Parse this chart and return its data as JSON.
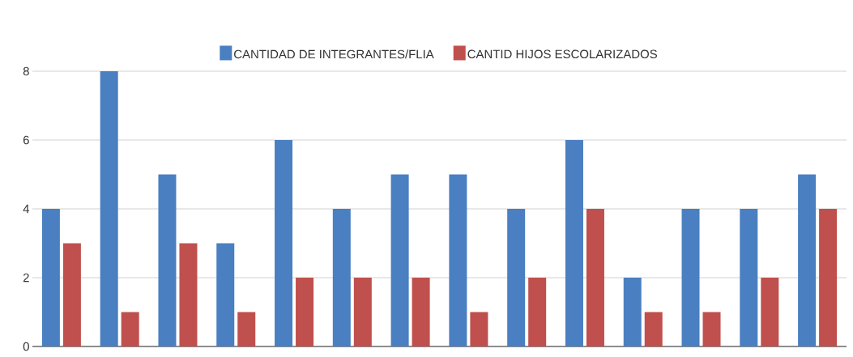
{
  "chart_data": {
    "type": "bar",
    "categories": [
      null,
      null,
      null,
      null,
      null,
      null,
      null,
      null,
      null,
      null,
      null,
      null,
      null,
      null
    ],
    "series": [
      {
        "name": "CANTIDAD DE INTEGRANTES/FLIA",
        "color": "#4a7fc1",
        "values": [
          4,
          8,
          5,
          3,
          6,
          4,
          5,
          5,
          4,
          6,
          2,
          4,
          4,
          5
        ]
      },
      {
        "name": "CANTID HIJOS ESCOLARIZADOS",
        "color": "#c0504d",
        "values": [
          3,
          1,
          3,
          1,
          2,
          2,
          2,
          1,
          2,
          4,
          1,
          1,
          2,
          4
        ]
      }
    ],
    "ylim": [
      0,
      8
    ],
    "yticks": [
      0,
      2,
      4,
      6,
      8
    ],
    "grid": "y",
    "legend": "top",
    "tick_labels": "y"
  }
}
